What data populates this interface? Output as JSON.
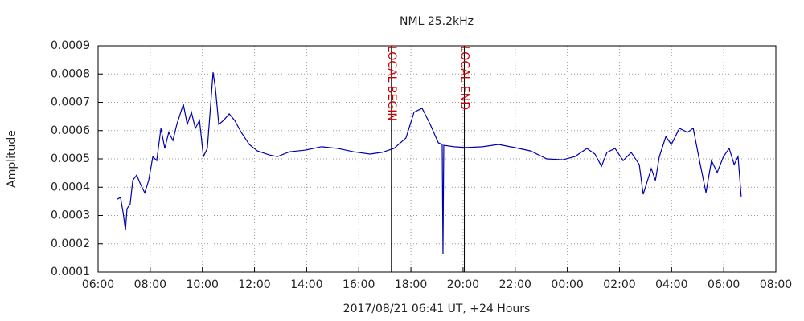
{
  "chart_data": {
    "type": "line",
    "title": "NML 25.2kHz",
    "x_label": "2017/08/21 06:41 UT, +24 Hours",
    "y_label": "Amplitude",
    "xlim": [
      6,
      32
    ],
    "ylim": [
      0.0001,
      0.0009
    ],
    "xticks": [
      {
        "value": 6,
        "label": "06:00"
      },
      {
        "value": 8,
        "label": "08:00"
      },
      {
        "value": 10,
        "label": "10:00"
      },
      {
        "value": 12,
        "label": "12:00"
      },
      {
        "value": 14,
        "label": "14:00"
      },
      {
        "value": 16,
        "label": "16:00"
      },
      {
        "value": 18,
        "label": "18:00"
      },
      {
        "value": 20,
        "label": "20:00"
      },
      {
        "value": 22,
        "label": "22:00"
      },
      {
        "value": 24,
        "label": "00:00"
      },
      {
        "value": 26,
        "label": "02:00"
      },
      {
        "value": 28,
        "label": "04:00"
      },
      {
        "value": 30,
        "label": "06:00"
      },
      {
        "value": 32,
        "label": "08:00"
      }
    ],
    "yticks": [
      0.0001,
      0.0002,
      0.0003,
      0.0004,
      0.0005,
      0.0006,
      0.0007,
      0.0008,
      0.0009
    ],
    "grid": true,
    "annotations": [
      {
        "text": "LOCAL BEGIN",
        "x": 17.25,
        "color": "#cc0000"
      },
      {
        "text": "LOCAL END",
        "x": 20.05,
        "color": "#cc0000"
      }
    ],
    "x": [
      6.74,
      6.86,
      6.96,
      7.05,
      7.11,
      7.23,
      7.33,
      7.48,
      7.63,
      7.79,
      7.94,
      8.1,
      8.25,
      8.41,
      8.56,
      8.71,
      8.87,
      9.02,
      9.27,
      9.42,
      9.58,
      9.73,
      9.89,
      10.04,
      10.19,
      10.32,
      10.41,
      10.5,
      10.63,
      10.81,
      11.03,
      11.24,
      11.49,
      11.8,
      12.11,
      12.57,
      12.88,
      13.34,
      13.96,
      14.57,
      15.19,
      15.81,
      16.43,
      16.89,
      17.35,
      17.81,
      18.12,
      18.43,
      18.74,
      19.05,
      19.2,
      19.23,
      19.26,
      19.66,
      20.13,
      20.74,
      21.36,
      21.98,
      22.59,
      23.21,
      23.83,
      24.29,
      24.75,
      25.06,
      25.31,
      25.52,
      25.83,
      26.14,
      26.45,
      26.76,
      26.91,
      27.22,
      27.38,
      27.53,
      27.78,
      27.99,
      28.3,
      28.61,
      28.83,
      29.07,
      29.32,
      29.53,
      29.75,
      29.99,
      30.21,
      30.4,
      30.55,
      30.67
    ],
    "series": [
      {
        "name": "Amplitude",
        "color": "#0000b0",
        "values": [
          0.000358,
          0.000364,
          0.00031,
          0.000248,
          0.000324,
          0.00034,
          0.000424,
          0.000443,
          0.00041,
          0.00038,
          0.000424,
          0.000508,
          0.000494,
          0.000608,
          0.000537,
          0.000594,
          0.000565,
          0.000622,
          0.000693,
          0.000622,
          0.000665,
          0.000608,
          0.000636,
          0.000508,
          0.000537,
          0.000693,
          0.000806,
          0.00075,
          0.000622,
          0.000636,
          0.000659,
          0.000636,
          0.000594,
          0.000551,
          0.000528,
          0.000514,
          0.000508,
          0.000525,
          0.000531,
          0.000543,
          0.000537,
          0.000525,
          0.000517,
          0.000523,
          0.000537,
          0.000574,
          0.000665,
          0.000679,
          0.000622,
          0.000557,
          0.000551,
          0.000165,
          0.000548,
          0.000543,
          0.00054,
          0.000543,
          0.000551,
          0.00054,
          0.000528,
          0.0005,
          0.000497,
          0.000508,
          0.000537,
          0.000517,
          0.000474,
          0.000523,
          0.000537,
          0.000494,
          0.000523,
          0.00048,
          0.000375,
          0.000466,
          0.000424,
          0.000508,
          0.000579,
          0.000551,
          0.000608,
          0.000594,
          0.000608,
          0.000494,
          0.000381,
          0.000494,
          0.000452,
          0.000508,
          0.000537,
          0.00048,
          0.000508,
          0.000367
        ]
      }
    ]
  }
}
